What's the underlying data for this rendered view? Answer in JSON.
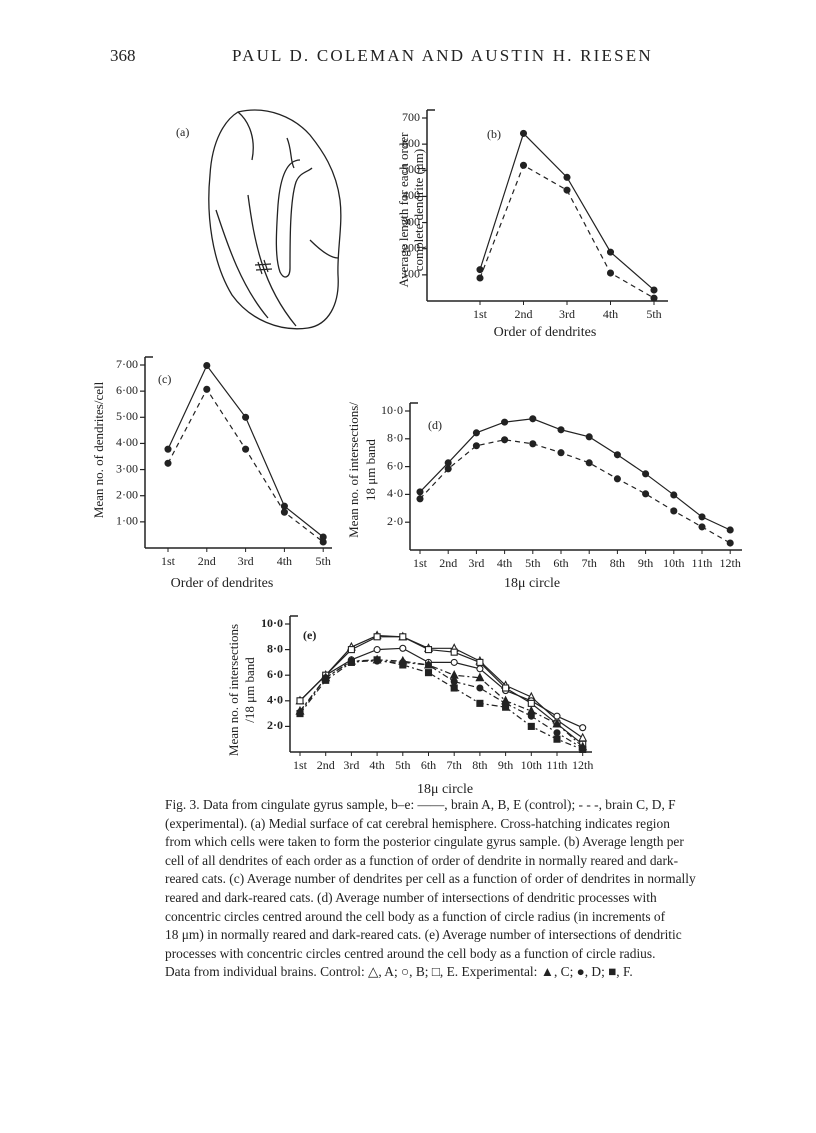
{
  "header": {
    "page_number": "368",
    "authors": "PAUL D. COLEMAN AND AUSTIN H. RIESEN"
  },
  "figure_a": {
    "label": "(a)"
  },
  "chart_data": [
    {
      "type": "line",
      "panel": "(b)",
      "ylabel": [
        "Average length for each order",
        "complete dendrite (μm)"
      ],
      "xlabel": "Order of dendrites",
      "categories": [
        "1st",
        "2nd",
        "3rd",
        "4th",
        "5th"
      ],
      "ylim": [
        0,
        700
      ],
      "yticks": [
        100,
        200,
        300,
        400,
        500,
        600,
        700
      ],
      "series": [
        {
          "color": "#222",
          "line_style": "solid",
          "marker": "circle",
          "marker_fill": "filled",
          "values": [
            120,
            641,
            473,
            187,
            42
          ]
        },
        {
          "color": "#222",
          "line_style": "dashed",
          "marker": "circle",
          "marker_fill": "filled",
          "values": [
            88,
            519,
            424,
            107,
            11
          ]
        }
      ]
    },
    {
      "type": "line",
      "panel": "(c)",
      "ylabel": [
        "Mean no. of dendrites/cell"
      ],
      "xlabel": "Order of dendrites",
      "categories": [
        "1st",
        "2nd",
        "3rd",
        "4th",
        "5th"
      ],
      "ylim": [
        0,
        7
      ],
      "yticks": [
        {
          "value": 1,
          "label": "1·00"
        },
        {
          "value": 2,
          "label": "2·00"
        },
        {
          "value": 3,
          "label": "3·00"
        },
        {
          "value": 4,
          "label": "4·00"
        },
        {
          "value": 5,
          "label": "5·00"
        },
        {
          "value": 6,
          "label": "6·00"
        },
        {
          "value": 7,
          "label": "7·00"
        }
      ],
      "series": [
        {
          "color": "#222",
          "line_style": "solid",
          "marker": "circle",
          "marker_fill": "filled",
          "values": [
            3.78,
            6.98,
            5.0,
            1.6,
            0.42
          ]
        },
        {
          "color": "#222",
          "line_style": "dashed",
          "marker": "circle",
          "marker_fill": "filled",
          "values": [
            3.24,
            6.07,
            3.78,
            1.37,
            0.23
          ]
        }
      ]
    },
    {
      "type": "line",
      "panel": "(d)",
      "ylabel": [
        "Mean no. of intersections/",
        "18 μm band"
      ],
      "xlabel": "18μ circle",
      "categories": [
        "1st",
        "2nd",
        "3rd",
        "4th",
        "5th",
        "6th",
        "7th",
        "8th",
        "9th",
        "10th",
        "11th",
        "12th"
      ],
      "ylim": [
        0,
        10
      ],
      "yticks": [
        {
          "value": 2,
          "label": "2·0"
        },
        {
          "value": 4,
          "label": "4·0"
        },
        {
          "value": 6,
          "label": "6·0"
        },
        {
          "value": 8,
          "label": "8·0"
        },
        {
          "value": 10,
          "label": "10·0"
        }
      ],
      "series": [
        {
          "color": "#222",
          "line_style": "solid",
          "marker": "circle",
          "marker_fill": "filled",
          "values": [
            4.18,
            6.27,
            8.43,
            9.2,
            9.44,
            8.65,
            8.14,
            6.85,
            5.48,
            3.96,
            2.38,
            1.44
          ]
        },
        {
          "color": "#222",
          "line_style": "dashed",
          "marker": "circle",
          "marker_fill": "filled",
          "values": [
            3.68,
            5.84,
            7.5,
            7.93,
            7.64,
            7.0,
            6.27,
            5.12,
            4.04,
            2.81,
            1.66,
            0.5
          ]
        }
      ]
    },
    {
      "type": "line",
      "panel": "(e)",
      "ylabel": [
        "Mean no. of intersections",
        "/18 μm band"
      ],
      "xlabel": "18μ circle",
      "categories": [
        "1st",
        "2nd",
        "3rd",
        "4th",
        "5th",
        "6th",
        "7th",
        "8th",
        "9th",
        "10th",
        "11th",
        "12th"
      ],
      "ylim": [
        0,
        10
      ],
      "yticks": [
        {
          "value": 2,
          "label": "2·0"
        },
        {
          "value": 4,
          "label": "4·0"
        },
        {
          "value": 6,
          "label": "6·0"
        },
        {
          "value": 8,
          "label": "8·0"
        },
        {
          "value": 10,
          "label": "10·0"
        }
      ],
      "series": [
        {
          "color": "#222",
          "line_style": "solid",
          "marker": "triangle",
          "marker_fill": "open",
          "values": [
            4.0,
            6.0,
            8.2,
            9.1,
            9.0,
            8.1,
            8.1,
            7.1,
            5.2,
            4.3,
            2.5,
            1.1
          ]
        },
        {
          "color": "#222",
          "line_style": "solid",
          "marker": "circle",
          "marker_fill": "open",
          "values": [
            4.0,
            6.0,
            7.2,
            8.0,
            8.1,
            7.0,
            7.0,
            6.5,
            4.8,
            4.0,
            2.8,
            1.9
          ]
        },
        {
          "color": "#222",
          "line_style": "solid",
          "marker": "square",
          "marker_fill": "open",
          "values": [
            4.0,
            6.0,
            8.0,
            9.0,
            9.0,
            8.0,
            7.8,
            7.0,
            5.0,
            3.8,
            2.2,
            0.6
          ]
        },
        {
          "color": "#222",
          "line_style": "dashdot",
          "marker": "triangle",
          "marker_fill": "filled",
          "values": [
            3.2,
            5.8,
            7.1,
            7.2,
            7.1,
            6.8,
            6.0,
            5.8,
            4.0,
            3.2,
            2.2,
            0.4
          ]
        },
        {
          "color": "#222",
          "line_style": "dashdot",
          "marker": "circle",
          "marker_fill": "filled",
          "values": [
            3.1,
            5.8,
            7.1,
            7.1,
            7.0,
            6.8,
            5.5,
            5.0,
            3.8,
            2.8,
            1.5,
            0.3
          ]
        },
        {
          "color": "#222",
          "line_style": "dashdot",
          "marker": "square",
          "marker_fill": "filled",
          "values": [
            3.0,
            5.6,
            7.0,
            7.2,
            6.8,
            6.2,
            5.0,
            3.8,
            3.5,
            2.0,
            1.0,
            0.2
          ]
        }
      ]
    }
  ],
  "caption": {
    "lines": [
      "Fig. 3. Data from cingulate gyrus sample, b–e: ——, brain A, B, E (control); - - -, brain C, D, F",
      "(experimental). (a) Medial surface of cat cerebral hemisphere. Cross-hatching indicates region",
      "from which cells were taken to form the posterior cingulate gyrus sample. (b) Average length per",
      "cell of all dendrites of each order as a function of order of dendrite in normally reared and dark-",
      "reared cats. (c) Average number of dendrites per cell as a function of order of dendrites in normally",
      "reared and dark-reared cats. (d) Average number of intersections of dendritic processes with",
      "concentric circles centred around the cell body as a function of circle radius (in increments of",
      "18 μm) in normally reared and dark-reared cats. (e) Average number of intersections of dendritic",
      "processes with concentric circles centred around the cell body as a function of circle radius.",
      "Data from individual brains. Control: △, A; ○, B; □, E. Experimental: ▲, C; ●, D; ■, F."
    ]
  }
}
